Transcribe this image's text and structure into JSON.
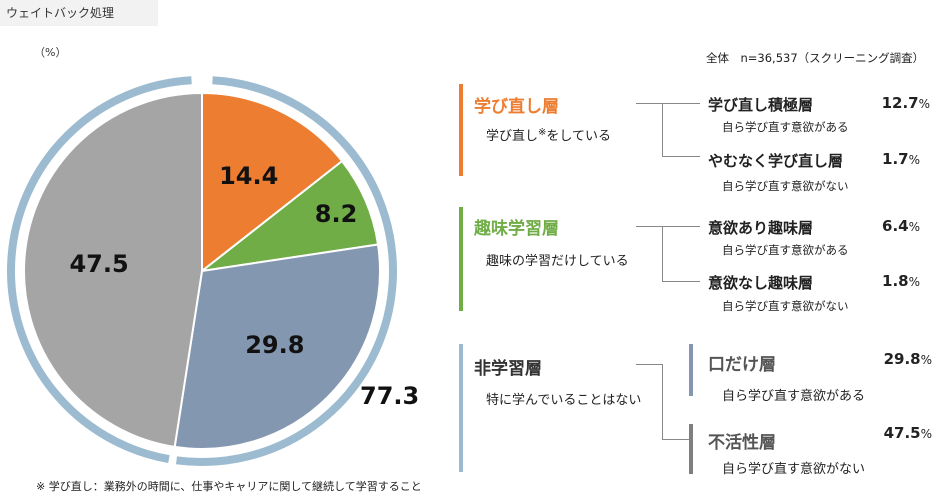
{
  "tag": "ウェイトバック処理",
  "unit": "（%）",
  "note": "全体　n=36,537（スクリーニング調査）",
  "footnote": "※ 学び直し：業務外の時間に、仕事やキャリアに関して継続して学習すること",
  "chart_data": {
    "type": "pie",
    "slices": [
      {
        "value": 14.4,
        "label": "14.4",
        "color": "#ed7d31"
      },
      {
        "value": 8.2,
        "label": "8.2",
        "color": "#70ad47"
      },
      {
        "value": 29.8,
        "label": "29.8",
        "color": "#8497b0"
      },
      {
        "value": 47.5,
        "label": "47.5",
        "color": "#a5a5a5"
      }
    ],
    "total_label": "77.3",
    "ring_color": "#9dbbd0"
  },
  "groups": [
    {
      "title": "学び直し層",
      "desc": "学び直し",
      "desc_sup": "※",
      "desc_tail": "をしている",
      "color": "#ed7d31",
      "subs": [
        {
          "name": "学び直し積極層",
          "desc": "自ら学び直す意欲がある",
          "pct": "12.7",
          "unit": "%"
        },
        {
          "name": "やむなく学び直し層",
          "desc": "自ら学び直す意欲がない",
          "pct": "1.7",
          "unit": "%"
        }
      ]
    },
    {
      "title": "趣味学習層",
      "desc": "趣味の学習だけしている",
      "color": "#70ad47",
      "subs": [
        {
          "name": "意欲あり趣味層",
          "desc": "自ら学び直す意欲がある",
          "pct": "6.4",
          "unit": "%"
        },
        {
          "name": "意欲なし趣味層",
          "desc": "自ら学び直す意欲がない",
          "pct": "1.8",
          "unit": "%"
        }
      ]
    },
    {
      "title": "非学習層",
      "desc": "特に学んでいることはない",
      "color": "#9dbbd0",
      "subs": [
        {
          "name": "口だけ層",
          "desc": "自ら学び直す意欲がある",
          "pct": "29.8",
          "unit": "%",
          "bar_color": "#8497b0"
        },
        {
          "name": "不活性層",
          "desc": "自ら学び直す意欲がない",
          "pct": "47.5",
          "unit": "%",
          "bar_color": "#7f7f7f"
        }
      ]
    }
  ]
}
